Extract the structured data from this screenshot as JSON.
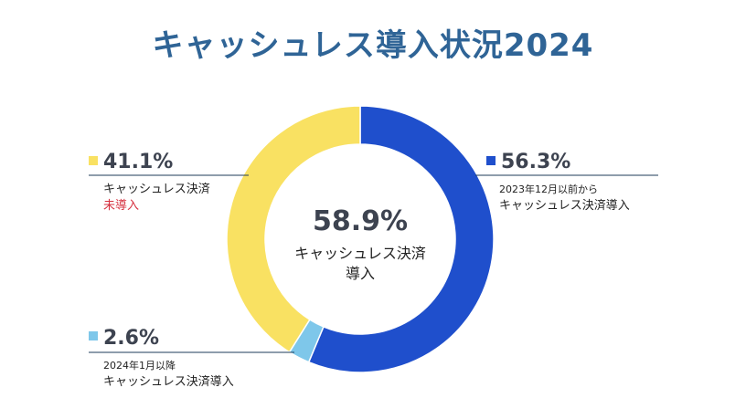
{
  "title": "キャッシュレス導入状況2024",
  "colors": {
    "title": "#2f6496",
    "blue": "#1f4fcc",
    "yellow": "#f9e162",
    "light_blue": "#7ec7ea",
    "not_introduced_text": "#d6303f",
    "leader_line": "#1e3b5a"
  },
  "chart_data": {
    "type": "pie",
    "variant": "donut",
    "title": "キャッシュレス導入状況2024",
    "center": {
      "value": "58.9%",
      "label_line1": "キャッシュレス決済",
      "label_line2": "導入"
    },
    "slices": [
      {
        "key": "since_2023",
        "value": 56.3,
        "value_label": "56.3%",
        "sub_label": "2023年12月以前から",
        "label": "キャッシュレス決済導入",
        "color": "#1f4fcc"
      },
      {
        "key": "since_2024",
        "value": 2.6,
        "value_label": "2.6%",
        "sub_label": "2024年1月以降",
        "label": "キャッシュレス決済導入",
        "color": "#7ec7ea"
      },
      {
        "key": "not_introduced",
        "value": 41.1,
        "value_label": "41.1%",
        "label": "キャッシュレス決済",
        "label_red": "未導入",
        "color": "#f9e162"
      }
    ]
  }
}
